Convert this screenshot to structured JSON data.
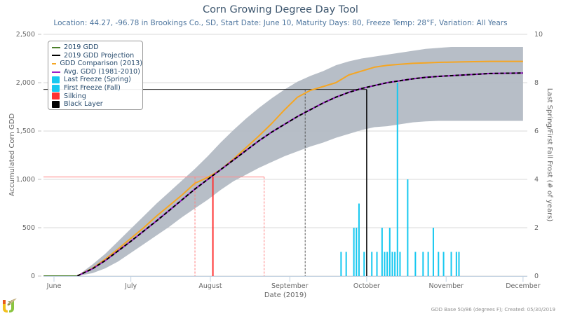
{
  "header": {
    "title": "Corn Growing Degree Day Tool",
    "subtitle": "Location: 44.27, -96.78 in Brookings Co., SD, Start Date: June 10, Maturity Days: 80, Freeze Temp: 28°F, Variation: All Years"
  },
  "legend": {
    "items": [
      {
        "label": "2019 GDD",
        "kind": "line",
        "color": "#4b7f2a"
      },
      {
        "label": "2019 GDD Projection",
        "kind": "dash",
        "color": "#000000"
      },
      {
        "label": "GDD Comparison (2013)",
        "kind": "line",
        "color": "#f5a623"
      },
      {
        "label": "Avg. GDD (1981-2010)",
        "kind": "line",
        "color": "#9b1ec8"
      },
      {
        "label": "Last Freeze (Spring)",
        "kind": "box",
        "color": "#16c8f0"
      },
      {
        "label": "First Freeze (Fall)",
        "kind": "box",
        "color": "#16c8f0"
      },
      {
        "label": "Silking",
        "kind": "box",
        "color": "#ff3333"
      },
      {
        "label": "Black Layer",
        "kind": "box",
        "color": "#000000"
      }
    ]
  },
  "credits": "GDD Base 50/86 (degrees F); Created: 05/30/2019",
  "logo": {
    "icon": "u2u-logo-icon"
  },
  "chart_data": {
    "type": "line",
    "title": "Corn Growing Degree Day Tool",
    "xlabel": "Date (2019)",
    "ylabel": "Accumulated Corn GDD",
    "y2label": "Last Spring/First Fall Frost (# of years)",
    "x_ticks": [
      {
        "label": "June",
        "day": 0
      },
      {
        "label": "July",
        "day": 30
      },
      {
        "label": "August",
        "day": 61
      },
      {
        "label": "September",
        "day": 92
      },
      {
        "label": "October",
        "day": 122
      },
      {
        "label": "November",
        "day": 153
      },
      {
        "label": "December",
        "day": 183
      }
    ],
    "x_unit": "days since June 1, 2019",
    "xlim": [
      -4,
      185
    ],
    "ylim": [
      0,
      2500
    ],
    "y_ticks": [
      0,
      500,
      1000,
      1500,
      2000,
      2500
    ],
    "y_tick_labels": [
      "0",
      "500",
      "1,000",
      "1,500",
      "2,000",
      "2,500"
    ],
    "y2lim": [
      0,
      10
    ],
    "y2_ticks": [
      0,
      2,
      4,
      6,
      8,
      10
    ],
    "grid": true,
    "legend_position": "top-left",
    "band": {
      "name": "GDD Range (min-max)",
      "color": "#b3bac4",
      "x": [
        9,
        15,
        20,
        25,
        30,
        35,
        40,
        45,
        50,
        55,
        60,
        65,
        70,
        75,
        80,
        85,
        90,
        95,
        100,
        105,
        110,
        115,
        120,
        125,
        130,
        135,
        140,
        145,
        150,
        155,
        160,
        165,
        170,
        175,
        183
      ],
      "lower": [
        0,
        30,
        80,
        150,
        240,
        330,
        420,
        510,
        610,
        700,
        790,
        890,
        980,
        1050,
        1120,
        1180,
        1240,
        1290,
        1340,
        1380,
        1430,
        1470,
        1510,
        1540,
        1550,
        1570,
        1590,
        1600,
        1605,
        1605,
        1605,
        1605,
        1605,
        1605,
        1605
      ],
      "upper": [
        0,
        120,
        230,
        360,
        490,
        620,
        750,
        870,
        990,
        1110,
        1240,
        1380,
        1510,
        1630,
        1740,
        1840,
        1930,
        2010,
        2070,
        2120,
        2180,
        2220,
        2250,
        2270,
        2290,
        2310,
        2330,
        2350,
        2360,
        2370,
        2370,
        2370,
        2370,
        2370,
        2370
      ]
    },
    "series": [
      {
        "name": "GDD Comparison (2013)",
        "color": "#f5a623",
        "dashed": false,
        "x": [
          -4,
          9,
          15,
          20,
          25,
          30,
          35,
          40,
          45,
          50,
          55,
          60,
          65,
          70,
          75,
          80,
          85,
          90,
          95,
          100,
          105,
          110,
          115,
          120,
          125,
          130,
          135,
          140,
          145,
          150,
          160,
          170,
          183
        ],
        "y": [
          0,
          0,
          80,
          175,
          280,
          390,
          500,
          620,
          730,
          840,
          960,
          1020,
          1100,
          1210,
          1330,
          1450,
          1580,
          1720,
          1850,
          1920,
          1960,
          2000,
          2080,
          2120,
          2160,
          2180,
          2190,
          2200,
          2205,
          2210,
          2215,
          2220,
          2220
        ]
      },
      {
        "name": "Avg. GDD (1981-2010)",
        "color": "#9b1ec8",
        "dashed": false,
        "x": [
          -4,
          9,
          15,
          20,
          25,
          30,
          35,
          40,
          45,
          50,
          55,
          60,
          65,
          70,
          75,
          80,
          85,
          90,
          95,
          100,
          105,
          110,
          115,
          120,
          125,
          130,
          135,
          140,
          145,
          150,
          160,
          170,
          183
        ],
        "y": [
          0,
          0,
          75,
          160,
          260,
          360,
          465,
          570,
          680,
          790,
          900,
          1000,
          1100,
          1200,
          1300,
          1400,
          1490,
          1570,
          1650,
          1720,
          1790,
          1850,
          1900,
          1940,
          1970,
          2000,
          2020,
          2040,
          2055,
          2065,
          2080,
          2095,
          2100
        ]
      },
      {
        "name": "2019 GDD Projection",
        "color": "#000000",
        "dashed": true,
        "x": [
          -4,
          9,
          15,
          20,
          25,
          30,
          35,
          40,
          45,
          50,
          55,
          60,
          65,
          70,
          75,
          80,
          85,
          90,
          95,
          100,
          105,
          110,
          115,
          120,
          125,
          130,
          135,
          140,
          145,
          150,
          160,
          170,
          183
        ],
        "y": [
          0,
          0,
          75,
          160,
          260,
          360,
          465,
          570,
          680,
          790,
          900,
          1000,
          1100,
          1200,
          1300,
          1400,
          1490,
          1570,
          1650,
          1720,
          1790,
          1850,
          1900,
          1940,
          1970,
          2000,
          2020,
          2040,
          2055,
          2065,
          2080,
          2095,
          2100
        ]
      },
      {
        "name": "2019 GDD",
        "color": "#4b7f2a",
        "dashed": false,
        "x": [
          -4,
          9
        ],
        "y": [
          0,
          0
        ]
      }
    ],
    "markers": {
      "silking": {
        "day": 62,
        "gdd": 1025,
        "range_days": [
          55,
          82
        ],
        "color": "#ff3333"
      },
      "black_layer": {
        "day": 122,
        "gdd": 1930,
        "range_day_early": 98,
        "color": "#000000"
      }
    },
    "frost_bars": {
      "axis": "y2",
      "color": "#16c8f0",
      "days": [
        112,
        114,
        117,
        118,
        119,
        121,
        124,
        126,
        128,
        129,
        130,
        131,
        132,
        133,
        134,
        135,
        138,
        141,
        144,
        146,
        148,
        150,
        152,
        155,
        157,
        158
      ],
      "counts": [
        1,
        1,
        2,
        2,
        3,
        1,
        1,
        1,
        2,
        1,
        1,
        2,
        1,
        1,
        8,
        1,
        4,
        1,
        1,
        1,
        2,
        1,
        1,
        1,
        1,
        1
      ]
    }
  }
}
